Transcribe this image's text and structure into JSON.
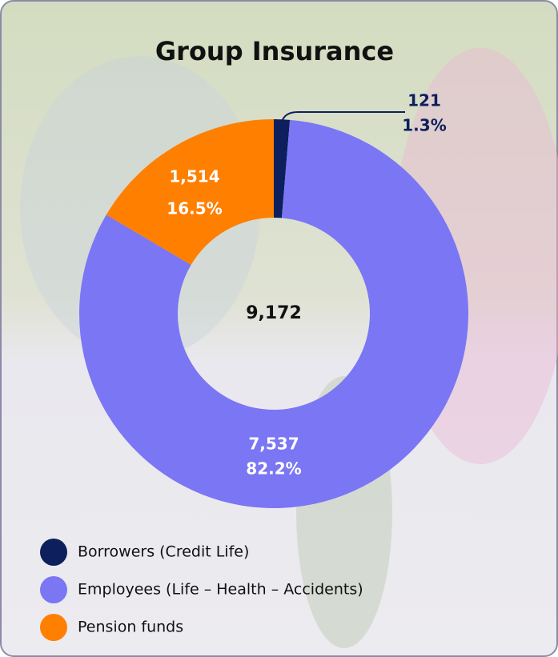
{
  "chart_data": {
    "type": "pie",
    "title": "Group Insurance",
    "categories": [
      "Borrowers (Credit Life)",
      "Employees (Life – Health – Accidents)",
      "Pension funds"
    ],
    "values": [
      121,
      7537,
      1514
    ],
    "value_labels": [
      "121",
      "7,537",
      "1,514"
    ],
    "percent_values": [
      1.3,
      82.2,
      16.5
    ],
    "percent_labels": [
      "1.3%",
      "82.2%",
      "16.5%"
    ],
    "colors": [
      "#0d1f5c",
      "#7a76f4",
      "#ff7f00"
    ],
    "total": 9172,
    "total_label": "9,172",
    "donut": true,
    "legend": "bottom-left"
  }
}
